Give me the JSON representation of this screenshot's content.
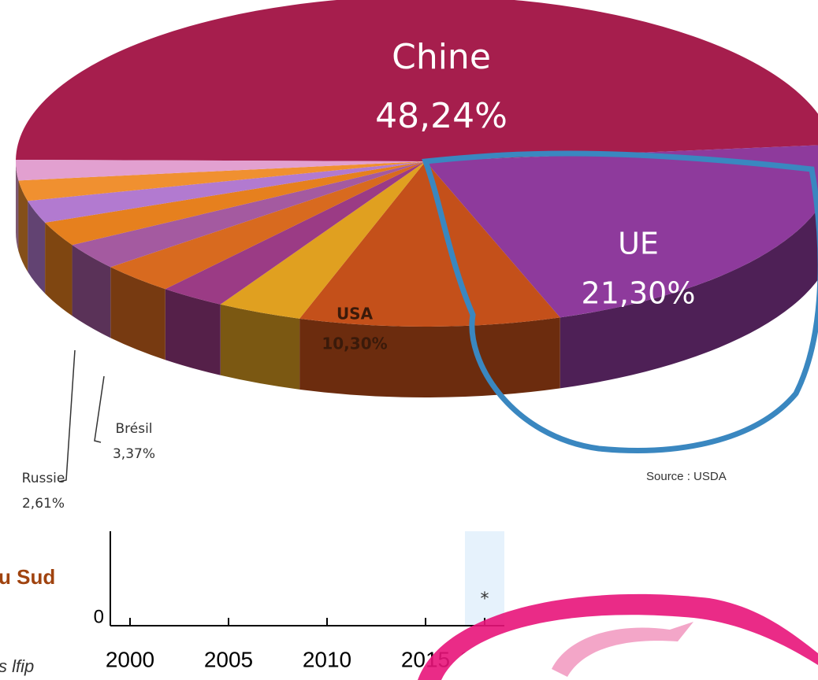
{
  "pie_chart": {
    "type": "pie",
    "categories": [
      "Chine",
      "UE",
      "USA",
      "Brésil",
      "Russie",
      null,
      null,
      null,
      null,
      null,
      null
    ],
    "values": [
      48.24,
      21.3,
      10.3,
      3.37,
      2.61,
      3.0,
      2.6,
      2.4,
      2.2,
      2.0,
      2.0
    ],
    "value_labels": [
      "48,24%",
      "21,30%",
      "10,30%",
      "3,37%",
      "2,61%",
      null,
      null,
      null,
      null,
      null,
      null
    ],
    "colors": [
      "#a61e4d",
      "#8e3a9c",
      "#c4501a",
      "#e0a020",
      "#9b3b85",
      "#d86a1f",
      "#a45aa0",
      "#e6801e",
      "#b27ad0",
      "#f09030",
      "#e2a0d0"
    ],
    "source": "Source : USDA"
  },
  "lower_chart": {
    "type": "bar",
    "heading": "u Sud",
    "note": "s lfip",
    "xlim": [
      1999,
      2019
    ],
    "xticks": [
      2000,
      2005,
      2010,
      2015,
      2018
    ],
    "yticks": [
      0
    ],
    "highlight": 2018,
    "annotation": "*"
  }
}
